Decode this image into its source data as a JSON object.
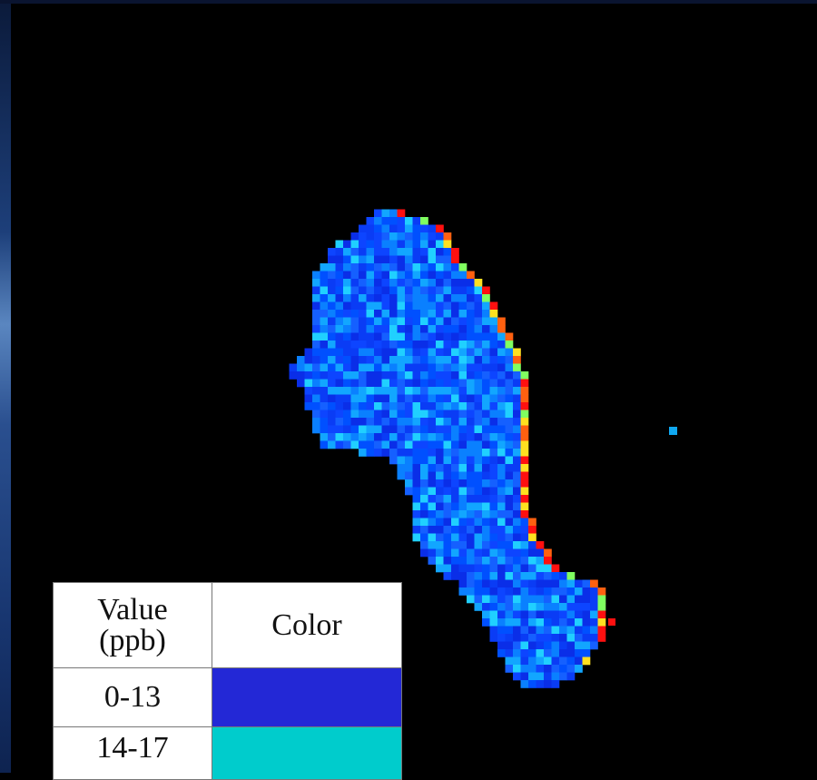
{
  "legend": {
    "header": {
      "value": "Value (ppb)",
      "color": "Color"
    },
    "rows": [
      {
        "range": "0-13",
        "color": "#2328d6"
      },
      {
        "range": "14-17",
        "color": "#00cccc"
      }
    ]
  }
}
